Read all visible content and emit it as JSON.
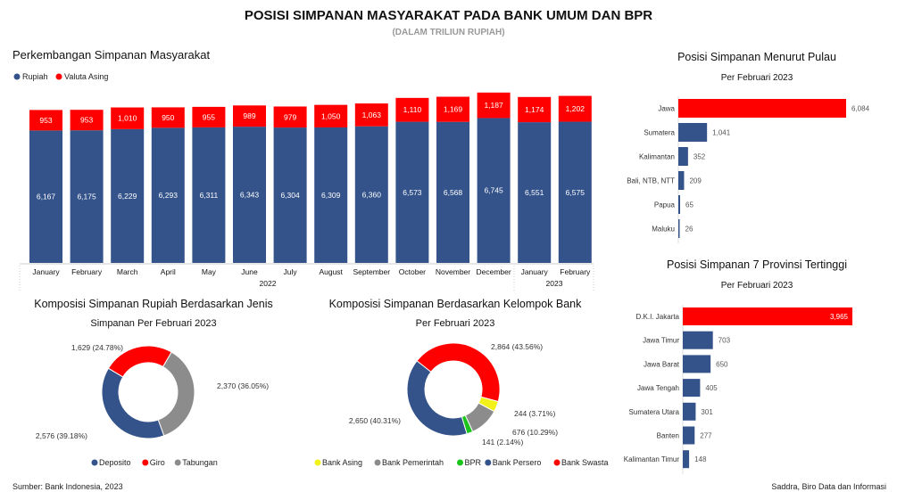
{
  "title": "POSISI SIMPANAN MASYARAKAT PADA BANK UMUM DAN BPR",
  "subtitle": "(DALAM TRILIUN RUPIAH)",
  "source": "Sumber: Bank Indonesia, 2023",
  "credit": "Saddra, Biro Data dan Informasi",
  "colors": {
    "blue": "#34538A",
    "red": "#FF0000",
    "gray": "#8C8C8C",
    "yellow": "#F2F21A",
    "green": "#1BC41B"
  },
  "chart_data": [
    {
      "type": "bar",
      "stacked": true,
      "title": "Perkembangan Simpanan Masyarakat",
      "categories": [
        "January",
        "February",
        "March",
        "April",
        "May",
        "June",
        "July",
        "August",
        "September",
        "October",
        "November",
        "December",
        "January",
        "February"
      ],
      "groups": [
        {
          "label": "2022",
          "count": 12
        },
        {
          "label": "2023",
          "count": 2
        }
      ],
      "series": [
        {
          "name": "Rupiah",
          "values": [
            6167,
            6175,
            6229,
            6293,
            6311,
            6343,
            6304,
            6309,
            6360,
            6573,
            6568,
            6745,
            6551,
            6575
          ]
        },
        {
          "name": "Valuta Asing",
          "values": [
            953,
            953,
            1010,
            950,
            955,
            989,
            979,
            1050,
            1063,
            1110,
            1169,
            1187,
            1174,
            1202
          ]
        }
      ],
      "legend": "top-left"
    },
    {
      "type": "pie",
      "title": "Komposisi Simpanan Rupiah Berdasarkan Jenis",
      "subtitle": "Simpanan Per Februari 2023",
      "slices": [
        {
          "name": "Deposito",
          "value": 2576,
          "label": "2,576 (39.18%)"
        },
        {
          "name": "Giro",
          "value": 1629,
          "label": "1,629 (24.78%)"
        },
        {
          "name": "Tabungan",
          "value": 2370,
          "label": "2,370 (36.05%)"
        }
      ]
    },
    {
      "type": "pie",
      "title": "Komposisi Simpanan Berdasarkan Kelompok Bank",
      "subtitle": "Per Februari 2023",
      "slices": [
        {
          "name": "Bank Asing",
          "value": 244,
          "label": "244 (3.71%)"
        },
        {
          "name": "Bank Pemerintah",
          "value": 676,
          "label": "676 (10.29%)"
        },
        {
          "name": "BPR",
          "value": 141,
          "label": "141 (2.14%)"
        },
        {
          "name": "Bank Persero",
          "value": 2650,
          "label": "2,650 (40.31%)"
        },
        {
          "name": "Bank Swasta",
          "value": 2864,
          "label": "2,864 (43.56%)"
        }
      ]
    },
    {
      "type": "bar",
      "orientation": "horizontal",
      "title": "Posisi Simpanan Menurut Pulau",
      "subtitle": "Per Februari 2023",
      "categories": [
        "Jawa",
        "Sumatera",
        "Kalimantan",
        "Bali, NTB, NTT",
        "Papua",
        "Maluku"
      ],
      "values": [
        6084,
        1041,
        352,
        209,
        65,
        26
      ],
      "labels": [
        "6,084",
        "1,041",
        "352",
        "209",
        "65",
        "26"
      ]
    },
    {
      "type": "bar",
      "orientation": "horizontal",
      "title": "Posisi Simpanan 7 Provinsi Tertinggi",
      "subtitle": "Per Februari 2023",
      "categories": [
        "D.K.I. Jakarta",
        "Jawa Timur",
        "Jawa Barat",
        "Jawa Tengah",
        "Sumatera Utara",
        "Banten",
        "Kalimantan Timur"
      ],
      "values": [
        3965,
        703,
        650,
        405,
        301,
        277,
        148
      ],
      "labels": [
        "3,965",
        "703",
        "650",
        "405",
        "301",
        "277",
        "148"
      ]
    }
  ]
}
